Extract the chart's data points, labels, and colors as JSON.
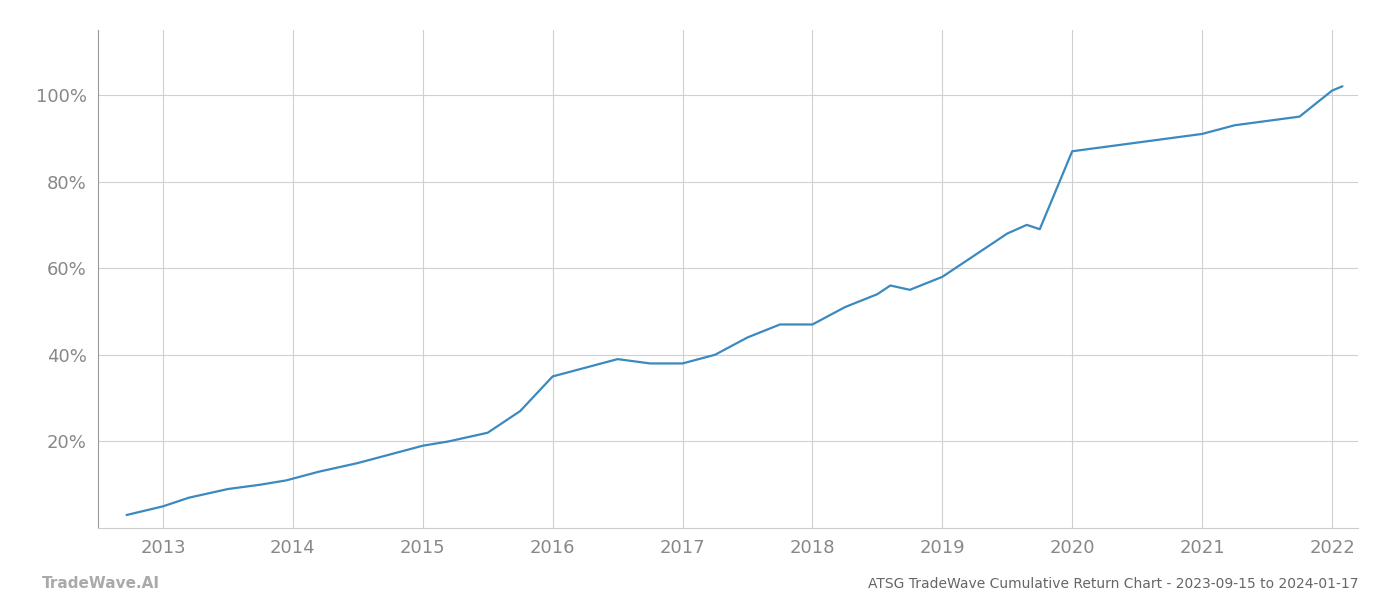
{
  "title": "ATSG TradeWave Cumulative Return Chart - 2023-09-15 to 2024-01-17",
  "watermark": "TradeWave.AI",
  "line_color": "#3a8abf",
  "background_color": "#ffffff",
  "grid_color": "#d0d0d0",
  "x_years": [
    2013,
    2014,
    2015,
    2016,
    2017,
    2018,
    2019,
    2020,
    2021,
    2022
  ],
  "x_values": [
    2012.72,
    2013.0,
    2013.2,
    2013.5,
    2013.75,
    2013.95,
    2014.2,
    2014.5,
    2014.75,
    2015.0,
    2015.2,
    2015.5,
    2015.75,
    2016.0,
    2016.25,
    2016.5,
    2016.75,
    2017.0,
    2017.25,
    2017.5,
    2017.75,
    2018.0,
    2018.25,
    2018.5,
    2018.6,
    2018.75,
    2019.0,
    2019.25,
    2019.5,
    2019.65,
    2019.75,
    2020.0,
    2020.25,
    2020.5,
    2020.75,
    2021.0,
    2021.25,
    2021.5,
    2021.75,
    2022.0,
    2022.08
  ],
  "y_values": [
    3,
    5,
    7,
    9,
    10,
    11,
    13,
    15,
    17,
    19,
    20,
    22,
    27,
    35,
    37,
    39,
    38,
    38,
    40,
    44,
    47,
    47,
    51,
    54,
    56,
    55,
    58,
    63,
    68,
    70,
    69,
    87,
    88,
    89,
    90,
    91,
    93,
    94,
    95,
    101,
    102
  ],
  "yticks": [
    20,
    40,
    60,
    80,
    100
  ],
  "ylim": [
    0,
    115
  ],
  "xlim": [
    2012.5,
    2022.2
  ],
  "line_width": 1.6,
  "title_fontsize": 10,
  "watermark_fontsize": 11,
  "tick_fontsize": 13,
  "tick_color": "#888888",
  "left_spine_color": "#999999",
  "bottom_spine_color": "#cccccc",
  "title_color": "#666666",
  "watermark_color": "#aaaaaa"
}
